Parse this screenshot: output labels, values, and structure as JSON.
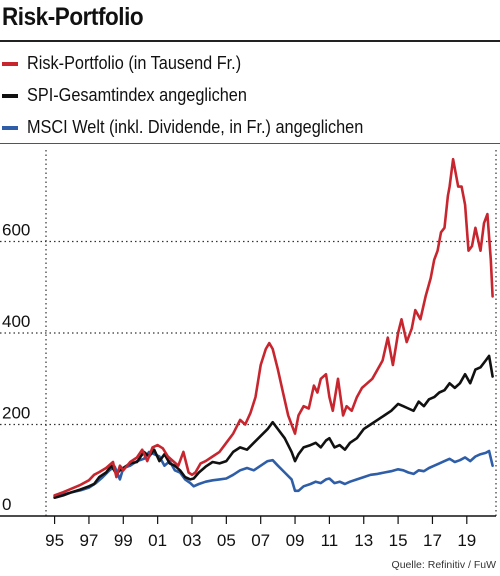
{
  "title": "Risk-Portfolio",
  "source": "Quelle: Refinitiv / FuW",
  "colors": {
    "risk": "#c8262f",
    "spi": "#111111",
    "msci": "#2f5ea8"
  },
  "legend": [
    {
      "label": "Risk-Portfolio (in Tausend Fr.)",
      "color": "#c8262f"
    },
    {
      "label": "SPI-Gesamtindex angeglichen",
      "color": "#111111"
    },
    {
      "label": "MSCI Welt (inkl. Dividende, in Fr.) angeglichen",
      "color": "#2f5ea8"
    }
  ],
  "chart_data": {
    "type": "line",
    "title": "Risk-Portfolio",
    "xlabel": "",
    "ylabel": "",
    "xlim": [
      1994.5,
      2020.7
    ],
    "ylim": [
      0,
      800
    ],
    "grid": "horizontal-dotted",
    "yticks": [
      0,
      200,
      400,
      600
    ],
    "ytick_labels": [
      "0",
      "200",
      "400",
      "600"
    ],
    "xticks": [
      1995,
      1997,
      1999,
      2001,
      2003,
      2005,
      2007,
      2009,
      2011,
      2013,
      2015,
      2017,
      2019
    ],
    "xtick_labels": [
      "95",
      "97",
      "99",
      "01",
      "03",
      "05",
      "07",
      "09",
      "11",
      "13",
      "15",
      "17",
      "19"
    ],
    "series": [
      {
        "name": "Risk-Portfolio (in Tausend Fr.)",
        "color": "#c8262f",
        "x": [
          1995.0,
          1995.5,
          1996.0,
          1996.5,
          1997.0,
          1997.3,
          1997.6,
          1998.0,
          1998.4,
          1998.6,
          1998.8,
          1999.0,
          1999.4,
          1999.8,
          2000.1,
          2000.4,
          2000.7,
          2001.0,
          2001.3,
          2001.6,
          2001.9,
          2002.2,
          2002.5,
          2002.8,
          2003.0,
          2003.2,
          2003.5,
          2003.8,
          2004.2,
          2004.6,
          2005.0,
          2005.4,
          2005.8,
          2006.1,
          2006.4,
          2006.7,
          2007.0,
          2007.3,
          2007.5,
          2007.7,
          2008.0,
          2008.3,
          2008.6,
          2008.9,
          2009.0,
          2009.2,
          2009.5,
          2009.8,
          2010.1,
          2010.3,
          2010.5,
          2010.8,
          2011.0,
          2011.2,
          2011.5,
          2011.8,
          2012.0,
          2012.3,
          2012.6,
          2012.9,
          2013.2,
          2013.5,
          2013.8,
          2014.1,
          2014.4,
          2014.7,
          2015.0,
          2015.2,
          2015.5,
          2015.8,
          2016.0,
          2016.3,
          2016.6,
          2016.9,
          2017.1,
          2017.3,
          2017.5,
          2017.7,
          2017.9,
          2018.0,
          2018.2,
          2018.5,
          2018.7,
          2018.9,
          2019.1,
          2019.3,
          2019.5,
          2019.8,
          2020.0,
          2020.2,
          2020.4,
          2020.5
        ],
        "y": [
          45,
          52,
          60,
          68,
          78,
          90,
          96,
          105,
          118,
          85,
          110,
          100,
          118,
          128,
          145,
          120,
          150,
          155,
          148,
          130,
          120,
          110,
          140,
          95,
          90,
          95,
          115,
          120,
          130,
          140,
          160,
          180,
          210,
          200,
          225,
          260,
          330,
          365,
          378,
          365,
          320,
          270,
          220,
          190,
          180,
          220,
          240,
          235,
          285,
          270,
          300,
          310,
          260,
          230,
          300,
          220,
          240,
          230,
          260,
          280,
          290,
          300,
          320,
          340,
          390,
          330,
          400,
          430,
          380,
          410,
          450,
          430,
          480,
          520,
          560,
          580,
          620,
          630,
          700,
          720,
          780,
          720,
          720,
          680,
          580,
          590,
          630,
          580,
          640,
          660,
          560,
          480
        ]
      },
      {
        "name": "SPI-Gesamtindex angeglichen",
        "color": "#111111",
        "x": [
          1995.0,
          1995.5,
          1996.0,
          1996.5,
          1997.0,
          1997.3,
          1997.6,
          1998.0,
          1998.3,
          1998.6,
          1998.8,
          1999.0,
          1999.4,
          1999.8,
          2000.2,
          2000.5,
          2000.8,
          2001.1,
          2001.4,
          2001.7,
          2002.0,
          2002.3,
          2002.6,
          2002.9,
          2003.1,
          2003.4,
          2003.8,
          2004.2,
          2004.6,
          2005.0,
          2005.4,
          2005.8,
          2006.2,
          2006.6,
          2007.0,
          2007.4,
          2007.7,
          2008.0,
          2008.4,
          2008.8,
          2009.0,
          2009.2,
          2009.5,
          2009.9,
          2010.2,
          2010.5,
          2010.8,
          2011.0,
          2011.3,
          2011.6,
          2011.9,
          2012.2,
          2012.6,
          2013.0,
          2013.4,
          2013.8,
          2014.2,
          2014.6,
          2015.0,
          2015.3,
          2015.6,
          2015.9,
          2016.2,
          2016.5,
          2016.8,
          2017.1,
          2017.4,
          2017.7,
          2018.0,
          2018.3,
          2018.6,
          2018.9,
          2019.2,
          2019.5,
          2019.8,
          2020.1,
          2020.3,
          2020.5
        ],
        "y": [
          40,
          45,
          52,
          58,
          65,
          70,
          85,
          95,
          110,
          92,
          100,
          105,
          115,
          118,
          140,
          130,
          145,
          120,
          135,
          115,
          110,
          100,
          85,
          80,
          82,
          95,
          108,
          118,
          115,
          120,
          140,
          150,
          145,
          160,
          175,
          190,
          205,
          190,
          170,
          140,
          120,
          135,
          150,
          155,
          160,
          150,
          165,
          170,
          150,
          155,
          145,
          160,
          170,
          190,
          200,
          210,
          220,
          230,
          245,
          240,
          235,
          230,
          250,
          240,
          255,
          260,
          270,
          275,
          290,
          280,
          290,
          310,
          290,
          320,
          325,
          340,
          350,
          305
        ]
      },
      {
        "name": "MSCI Welt (inkl. Dividende, in Fr.) angeglichen",
        "color": "#2f5ea8",
        "x": [
          1995.0,
          1995.5,
          1996.0,
          1996.5,
          1997.0,
          1997.4,
          1997.8,
          1998.2,
          1998.5,
          1998.8,
          1999.0,
          1999.4,
          1999.8,
          2000.2,
          2000.5,
          2000.8,
          2001.1,
          2001.4,
          2001.7,
          2002.0,
          2002.3,
          2002.6,
          2002.9,
          2003.1,
          2003.4,
          2003.8,
          2004.2,
          2004.6,
          2005.0,
          2005.4,
          2005.8,
          2006.2,
          2006.6,
          2007.0,
          2007.4,
          2007.7,
          2008.0,
          2008.4,
          2008.8,
          2009.0,
          2009.2,
          2009.5,
          2009.9,
          2010.2,
          2010.5,
          2010.8,
          2011.0,
          2011.3,
          2011.6,
          2011.9,
          2012.2,
          2012.6,
          2013.0,
          2013.4,
          2013.8,
          2014.2,
          2014.6,
          2015.0,
          2015.3,
          2015.6,
          2015.9,
          2016.2,
          2016.5,
          2016.8,
          2017.1,
          2017.4,
          2017.7,
          2018.0,
          2018.3,
          2018.6,
          2018.9,
          2019.2,
          2019.5,
          2019.8,
          2020.1,
          2020.3,
          2020.5
        ],
        "y": [
          42,
          47,
          52,
          56,
          62,
          72,
          85,
          100,
          108,
          80,
          105,
          110,
          120,
          125,
          140,
          135,
          130,
          110,
          120,
          100,
          95,
          80,
          72,
          65,
          70,
          75,
          78,
          80,
          82,
          90,
          100,
          105,
          100,
          110,
          120,
          122,
          110,
          95,
          80,
          55,
          55,
          65,
          70,
          75,
          72,
          80,
          82,
          72,
          75,
          70,
          75,
          80,
          85,
          90,
          92,
          95,
          98,
          102,
          100,
          95,
          92,
          100,
          98,
          105,
          110,
          115,
          120,
          125,
          118,
          122,
          128,
          120,
          130,
          135,
          138,
          142,
          110
        ]
      }
    ]
  }
}
